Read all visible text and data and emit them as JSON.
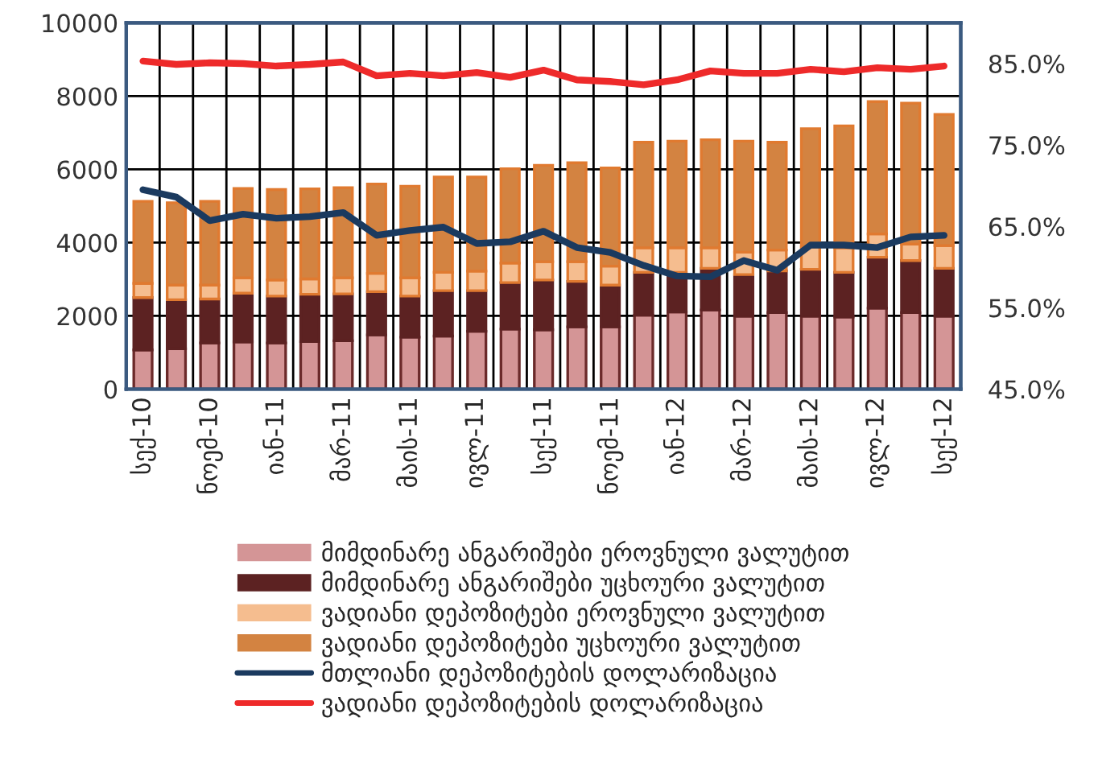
{
  "chart_data": {
    "type": "bar",
    "stacked": true,
    "categories": [
      "სექ-10",
      null,
      "ნოემ-10",
      null,
      "იან-11",
      null,
      "მარ-11",
      null,
      "მაის-11",
      null,
      "ივლ-11",
      null,
      "სექ-11",
      null,
      "ნოემ-11",
      null,
      "იან-12",
      null,
      "მარ-12",
      null,
      "მაის-12",
      null,
      "ივლ-12",
      null,
      "სექ-12"
    ],
    "series": [
      {
        "name": "მიმდინარე ანგარიშები ეროვნული ვალუტით",
        "color": "#d49596",
        "values": [
          1070,
          1100,
          1260,
          1290,
          1260,
          1300,
          1320,
          1480,
          1420,
          1450,
          1580,
          1640,
          1620,
          1700,
          1700,
          2020,
          2110,
          2160,
          1990,
          2090,
          1990,
          1970,
          2210,
          2090,
          1990
        ]
      },
      {
        "name": "მიმდინარე ანგარიშები უცხოური ვალუტით",
        "color": "#5c2222",
        "values": [
          1430,
          1340,
          1200,
          1330,
          1280,
          1290,
          1280,
          1180,
          1120,
          1240,
          1110,
          1270,
          1360,
          1240,
          1140,
          1170,
          1080,
          1140,
          1140,
          1140,
          1280,
          1220,
          1390,
          1420,
          1310
        ]
      },
      {
        "name": "ვადიანი დეპოზიტები ეროვნული ვალუტით",
        "color": "#f5bd8f",
        "values": [
          390,
          400,
          380,
          420,
          440,
          420,
          440,
          500,
          500,
          500,
          530,
          530,
          500,
          540,
          520,
          670,
          670,
          560,
          610,
          570,
          620,
          670,
          640,
          450,
          620
        ]
      },
      {
        "name": "ვადიანი დეპოზიტები უცხოური ვალუტით",
        "color": "#d38341",
        "values": [
          2240,
          2250,
          2290,
          2440,
          2470,
          2460,
          2460,
          2440,
          2500,
          2600,
          2570,
          2580,
          2630,
          2700,
          2680,
          2880,
          2910,
          2950,
          3030,
          2940,
          3220,
          3330,
          3610,
          3850,
          3580
        ]
      },
      {
        "name": "მთლიანი დეპოზიტების დოლარიზაცია",
        "type": "line",
        "axis": "y2",
        "color": "#1b3a5f",
        "values": [
          69.5,
          68.6,
          65.7,
          66.5,
          66.0,
          66.2,
          66.7,
          63.9,
          64.5,
          64.9,
          62.9,
          63.1,
          64.4,
          62.4,
          61.8,
          60.2,
          58.9,
          58.8,
          60.8,
          59.6,
          62.7,
          62.7,
          62.4,
          63.7,
          63.9
        ]
      },
      {
        "name": "ვადიანი დეპოზიტების დოლარიზაცია",
        "type": "line",
        "axis": "y2",
        "color": "#ee2a2a",
        "values": [
          85.3,
          84.9,
          85.1,
          85.0,
          84.7,
          84.9,
          85.2,
          83.5,
          83.8,
          83.5,
          83.9,
          83.3,
          84.2,
          83.0,
          82.8,
          82.4,
          83.0,
          84.1,
          83.8,
          83.8,
          84.3,
          84.0,
          84.5,
          84.3,
          84.7
        ]
      }
    ],
    "ylim": [
      0,
      10000
    ],
    "yticks": [
      0,
      2000,
      4000,
      6000,
      8000,
      10000
    ],
    "y2lim": [
      45,
      90
    ],
    "y2ticks": [
      {
        "value": 45,
        "label": "45.0%"
      },
      {
        "value": 55,
        "label": "55.0%"
      },
      {
        "value": 65,
        "label": "65.0%"
      },
      {
        "value": 75,
        "label": "75.0%"
      },
      {
        "value": 85,
        "label": "85.0%"
      }
    ],
    "grid": true,
    "legend": "bottom",
    "marker": "none",
    "line_style": "solid"
  }
}
